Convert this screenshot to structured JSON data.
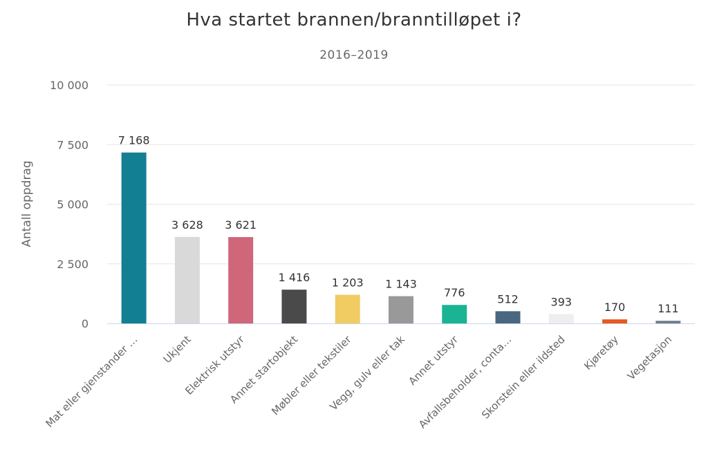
{
  "chart_data": {
    "type": "bar",
    "title": "Hva startet brannen/branntilløpet i?",
    "subtitle": "2016–2019",
    "ylabel": "Antall oppdrag",
    "xlabel": "",
    "ylim": [
      0,
      10000
    ],
    "yticks": [
      0,
      2500,
      5000,
      7500,
      10000
    ],
    "ytick_labels": [
      "0",
      "2 500",
      "5 000",
      "7 500",
      "10 000"
    ],
    "grid": true,
    "legend": "none",
    "categories": [
      "Mat eller gjenstander …",
      "Ukjent",
      "Elektrisk utstyr",
      "Annet startobjekt",
      "Møbler eller tekstiler",
      "Vegg, gulv eller tak",
      "Annet utstyr",
      "Avfallsbeholder, conta…",
      "Skorstein eller ildsted",
      "Kjøretøy",
      "Vegetasjon"
    ],
    "values": [
      7168,
      3628,
      3621,
      1416,
      1203,
      1143,
      776,
      512,
      393,
      170,
      111
    ],
    "value_labels": [
      "7 168",
      "3 628",
      "3 621",
      "1 416",
      "1 203",
      "1 143",
      "776",
      "512",
      "393",
      "170",
      "111"
    ],
    "colors": [
      "#137f92",
      "#d9d9d9",
      "#cf667a",
      "#4a4a4a",
      "#f0cc63",
      "#999999",
      "#1ab394",
      "#4a6780",
      "#eeeeee",
      "#e8581f",
      "#6f7f8c"
    ]
  }
}
